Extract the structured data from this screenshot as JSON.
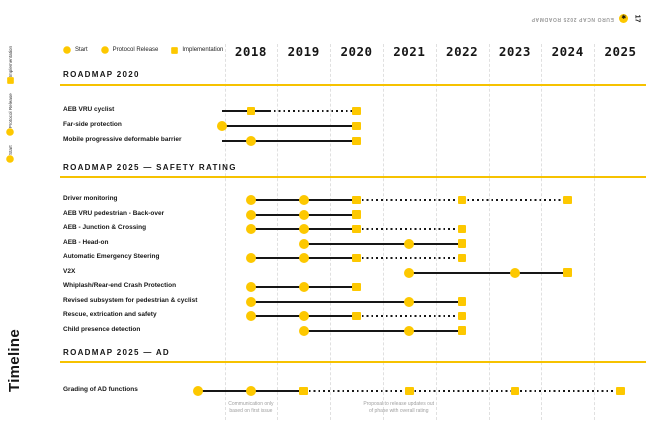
{
  "header": {
    "doc_title": "EURO NCAP 2025 ROADMAP",
    "page_number": "17",
    "logo_icon": "euroncap-star"
  },
  "side": {
    "vertical_title": "Timeline"
  },
  "colors": {
    "yellow": "#FDC800",
    "line": "#161616",
    "grid": "#E0E0E0",
    "rule": "#F6C200",
    "muted_text": "#A0A0A0"
  },
  "chart_data": {
    "type": "timeline-gantt",
    "title": "Timeline",
    "x_axis_years": [
      2018,
      2019,
      2020,
      2021,
      2022,
      2023,
      2024,
      2025
    ],
    "legend": [
      {
        "label": "Start",
        "shape": "circle"
      },
      {
        "label": "Protocol Release",
        "shape": "circle"
      },
      {
        "label": "Implementation",
        "shape": "square"
      }
    ],
    "sections": [
      {
        "title": "ROADMAP 2020",
        "rows": [
          {
            "label": "AEB VRU cyclist",
            "segments": [
              {
                "from": 2017.45,
                "to": 2018.35,
                "style": "solid"
              },
              {
                "from": 2018.35,
                "to": 2020,
                "style": "dotted"
              }
            ],
            "markers": [
              {
                "year": 2018,
                "type": "implementation"
              },
              {
                "year": 2020,
                "type": "implementation"
              }
            ]
          },
          {
            "label": "Far-side protection",
            "segments": [
              {
                "from": 2017.45,
                "to": 2020,
                "style": "solid"
              }
            ],
            "markers": [
              {
                "year": 2017.45,
                "type": "start"
              },
              {
                "year": 2020,
                "type": "implementation"
              }
            ]
          },
          {
            "label": "Mobile progressive deformable barrier",
            "segments": [
              {
                "from": 2017.45,
                "to": 2020,
                "style": "solid"
              }
            ],
            "markers": [
              {
                "year": 2018,
                "type": "protocol"
              },
              {
                "year": 2020,
                "type": "implementation"
              }
            ]
          }
        ]
      },
      {
        "title": "ROADMAP 2025 — SAFETY RATING",
        "rows": [
          {
            "label": "Driver monitoring",
            "segments": [
              {
                "from": 2018,
                "to": 2020,
                "style": "solid"
              },
              {
                "from": 2020,
                "to": 2024,
                "style": "dotted"
              }
            ],
            "markers": [
              {
                "year": 2018,
                "type": "start"
              },
              {
                "year": 2019,
                "type": "protocol"
              },
              {
                "year": 2020,
                "type": "implementation"
              },
              {
                "year": 2022,
                "type": "implementation"
              },
              {
                "year": 2024,
                "type": "implementation"
              }
            ]
          },
          {
            "label": "AEB VRU pedestrian - Back-over",
            "segments": [
              {
                "from": 2018,
                "to": 2020,
                "style": "solid"
              }
            ],
            "markers": [
              {
                "year": 2018,
                "type": "start"
              },
              {
                "year": 2019,
                "type": "protocol"
              },
              {
                "year": 2020,
                "type": "implementation"
              }
            ]
          },
          {
            "label": "AEB - Junction & Crossing",
            "segments": [
              {
                "from": 2018,
                "to": 2020,
                "style": "solid"
              },
              {
                "from": 2020,
                "to": 2022,
                "style": "dotted"
              }
            ],
            "markers": [
              {
                "year": 2018,
                "type": "start"
              },
              {
                "year": 2019,
                "type": "protocol"
              },
              {
                "year": 2020,
                "type": "implementation"
              },
              {
                "year": 2022,
                "type": "implementation"
              }
            ]
          },
          {
            "label": "AEB - Head-on",
            "segments": [
              {
                "from": 2019,
                "to": 2022,
                "style": "solid"
              }
            ],
            "markers": [
              {
                "year": 2019,
                "type": "start"
              },
              {
                "year": 2021,
                "type": "protocol"
              },
              {
                "year": 2022,
                "type": "implementation"
              }
            ]
          },
          {
            "label": "Automatic Emergency Steering",
            "segments": [
              {
                "from": 2018,
                "to": 2020,
                "style": "solid"
              },
              {
                "from": 2020,
                "to": 2022,
                "style": "dotted"
              }
            ],
            "markers": [
              {
                "year": 2018,
                "type": "start"
              },
              {
                "year": 2019,
                "type": "protocol"
              },
              {
                "year": 2020,
                "type": "implementation"
              },
              {
                "year": 2022,
                "type": "implementation"
              }
            ]
          },
          {
            "label": "V2X",
            "segments": [
              {
                "from": 2021,
                "to": 2024,
                "style": "solid"
              }
            ],
            "markers": [
              {
                "year": 2021,
                "type": "start"
              },
              {
                "year": 2023,
                "type": "protocol"
              },
              {
                "year": 2024,
                "type": "implementation"
              }
            ]
          },
          {
            "label": "Whiplash/Rear-end Crash Protection",
            "segments": [
              {
                "from": 2018,
                "to": 2020,
                "style": "solid"
              }
            ],
            "markers": [
              {
                "year": 2018,
                "type": "start"
              },
              {
                "year": 2019,
                "type": "protocol"
              },
              {
                "year": 2020,
                "type": "implementation"
              }
            ]
          },
          {
            "label": "Revised subsystem for pedestrian & cyclist",
            "segments": [
              {
                "from": 2018,
                "to": 2022,
                "style": "solid"
              }
            ],
            "markers": [
              {
                "year": 2018,
                "type": "start"
              },
              {
                "year": 2021,
                "type": "protocol"
              },
              {
                "year": 2022,
                "type": "implementation"
              }
            ]
          },
          {
            "label": "Rescue, extrication and safety",
            "segments": [
              {
                "from": 2018,
                "to": 2020,
                "style": "solid"
              },
              {
                "from": 2020,
                "to": 2022,
                "style": "dotted"
              }
            ],
            "markers": [
              {
                "year": 2018,
                "type": "start"
              },
              {
                "year": 2019,
                "type": "protocol"
              },
              {
                "year": 2020,
                "type": "implementation"
              },
              {
                "year": 2022,
                "type": "implementation"
              }
            ]
          },
          {
            "label": "Child presence detection",
            "segments": [
              {
                "from": 2019,
                "to": 2022,
                "style": "solid"
              }
            ],
            "markers": [
              {
                "year": 2019,
                "type": "start"
              },
              {
                "year": 2021,
                "type": "protocol"
              },
              {
                "year": 2022,
                "type": "implementation"
              }
            ]
          }
        ]
      },
      {
        "title": "ROADMAP 2025 — AD",
        "rows": [
          {
            "label": "Grading of AD functions",
            "segments": [
              {
                "from": 2017,
                "to": 2019,
                "style": "solid"
              },
              {
                "from": 2019,
                "to": 2025,
                "style": "dotted"
              }
            ],
            "markers": [
              {
                "year": 2017,
                "type": "start"
              },
              {
                "year": 2018,
                "type": "protocol"
              },
              {
                "year": 2019,
                "type": "implementation"
              },
              {
                "year": 2021,
                "type": "implementation"
              },
              {
                "year": 2023,
                "type": "implementation"
              },
              {
                "year": 2025,
                "type": "implementation"
              }
            ]
          }
        ]
      }
    ],
    "footnotes": [
      {
        "lines": [
          "Communication only",
          "based on first issue"
        ],
        "anchor_year": 2018
      },
      {
        "lines": [
          "Proposal to release updates out",
          "of phase with overall rating"
        ],
        "anchor_year": 2020.8
      }
    ]
  }
}
